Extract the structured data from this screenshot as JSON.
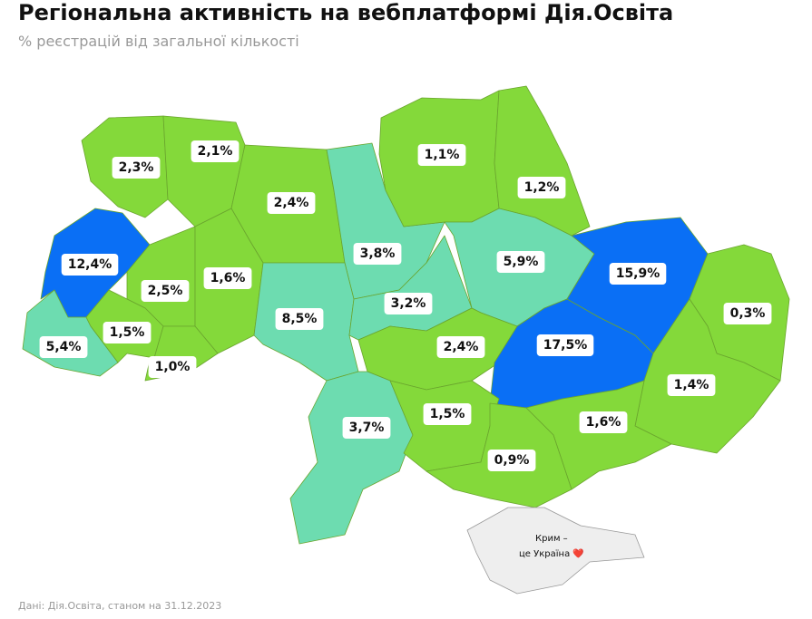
{
  "title": "Регіональна активність на вебплатформі Дія.Освіта",
  "subtitle": "% реєстрацій від загальної кількості",
  "regions": [
    {
      "label": "2,3%",
      "color": "#84d93a"
    },
    {
      "label": "2,1%",
      "color": "#84d93a"
    },
    {
      "label": "2,4%",
      "color": "#84d93a"
    },
    {
      "label": "3,8%",
      "color": "#6ddcb0"
    },
    {
      "label": "1,1%",
      "color": "#84d93a"
    },
    {
      "label": "1,2%",
      "color": "#84d93a"
    },
    {
      "label": "12,4%",
      "color": "#0a6ff5"
    },
    {
      "label": "2,5%",
      "color": "#84d93a"
    },
    {
      "label": "1,6%",
      "color": "#84d93a"
    },
    {
      "label": "8,5%",
      "color": "#6ddcb0"
    },
    {
      "label": "3,2%",
      "color": "#6ddcb0"
    },
    {
      "label": "5,9%",
      "color": "#6ddcb0"
    },
    {
      "label": "15,9%",
      "color": "#0a6ff5"
    },
    {
      "label": "0,3%",
      "color": "#84d93a"
    },
    {
      "label": "5,4%",
      "color": "#6ddcb0"
    },
    {
      "label": "1,5%",
      "color": "#84d93a"
    },
    {
      "label": "1,0%",
      "color": "#84d93a"
    },
    {
      "label": "2,4%",
      "color": "#84d93a"
    },
    {
      "label": "17,5%",
      "color": "#0a6ff5"
    },
    {
      "label": "1,4%",
      "color": "#84d93a"
    },
    {
      "label": "3,7%",
      "color": "#6ddcb0"
    },
    {
      "label": "1,5%",
      "color": "#84d93a"
    },
    {
      "label": "1,6%",
      "color": "#84d93a"
    },
    {
      "label": "0,9%",
      "color": "#84d93a"
    }
  ],
  "crimea": {
    "lines": [
      "Крим –",
      "це Україна ❤️"
    ],
    "color": "#eeeeee"
  },
  "source": "Дані: Дія.Освіта, станом на 31.12.2023"
}
